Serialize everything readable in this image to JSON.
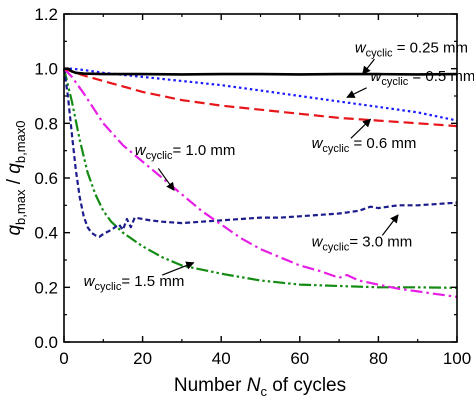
{
  "chart_data": {
    "type": "line",
    "xlabel": {
      "prefix": "Number ",
      "var": "N",
      "sub": "c",
      "suffix": " of cycles"
    },
    "ylabel": {
      "num_var": "q",
      "num_sub": "b,max",
      "sep": " / ",
      "den_var": "q",
      "den_sub": "b,max0"
    },
    "xlim": [
      0,
      100
    ],
    "ylim": [
      0,
      1.2
    ],
    "x_ticks": [
      0,
      20,
      40,
      60,
      80,
      100
    ],
    "y_ticks": [
      0.0,
      0.2,
      0.4,
      0.6,
      0.8,
      1.0,
      1.2
    ],
    "x_tick_labels": [
      "0",
      "20",
      "40",
      "60",
      "80",
      "100"
    ],
    "y_tick_labels": [
      "0.0",
      "0.2",
      "0.4",
      "0.6",
      "0.8",
      "1.0",
      "1.2"
    ],
    "grid": false,
    "series": [
      {
        "label": "w_cyclic = 0.25 mm",
        "color": "#000000",
        "dash": "solid",
        "points": [
          [
            0,
            1.0
          ],
          [
            1,
            1.0
          ],
          [
            2,
            0.99
          ],
          [
            3,
            0.985
          ],
          [
            5,
            0.982
          ],
          [
            10,
            0.98
          ],
          [
            20,
            0.98
          ],
          [
            30,
            0.979
          ],
          [
            40,
            0.98
          ],
          [
            50,
            0.98
          ],
          [
            60,
            0.979
          ],
          [
            70,
            0.98
          ],
          [
            80,
            0.98
          ],
          [
            90,
            0.979
          ],
          [
            100,
            0.98
          ]
        ]
      },
      {
        "label": "w_cyclic = 0.5 mm",
        "color": "#1a1aff",
        "dash": "dot",
        "points": [
          [
            0,
            1.0
          ],
          [
            2,
            1.0
          ],
          [
            5,
            0.995
          ],
          [
            10,
            0.985
          ],
          [
            20,
            0.97
          ],
          [
            30,
            0.955
          ],
          [
            40,
            0.94
          ],
          [
            50,
            0.92
          ],
          [
            60,
            0.9
          ],
          [
            70,
            0.88
          ],
          [
            80,
            0.86
          ],
          [
            90,
            0.84
          ],
          [
            100,
            0.81
          ]
        ]
      },
      {
        "label": "w_cyclic = 0.6 mm",
        "color": "#e8161b",
        "dash": "dash",
        "points": [
          [
            0,
            1.0
          ],
          [
            2,
            0.99
          ],
          [
            5,
            0.975
          ],
          [
            10,
            0.955
          ],
          [
            15,
            0.935
          ],
          [
            20,
            0.915
          ],
          [
            30,
            0.885
          ],
          [
            40,
            0.865
          ],
          [
            50,
            0.85
          ],
          [
            60,
            0.835
          ],
          [
            70,
            0.82
          ],
          [
            80,
            0.81
          ],
          [
            90,
            0.8
          ],
          [
            100,
            0.79
          ]
        ]
      },
      {
        "label": "w_cyclic = 1.0 mm",
        "color": "#e61ee6",
        "dash": "dashdot",
        "points": [
          [
            0,
            1.0
          ],
          [
            2,
            0.97
          ],
          [
            5,
            0.91
          ],
          [
            10,
            0.8
          ],
          [
            15,
            0.72
          ],
          [
            20,
            0.66
          ],
          [
            25,
            0.6
          ],
          [
            30,
            0.54
          ],
          [
            35,
            0.48
          ],
          [
            40,
            0.43
          ],
          [
            45,
            0.38
          ],
          [
            50,
            0.34
          ],
          [
            55,
            0.31
          ],
          [
            60,
            0.28
          ],
          [
            65,
            0.26
          ],
          [
            70,
            0.235
          ],
          [
            72,
            0.245
          ],
          [
            75,
            0.225
          ],
          [
            80,
            0.21
          ],
          [
            85,
            0.195
          ],
          [
            90,
            0.185
          ],
          [
            95,
            0.175
          ],
          [
            100,
            0.165
          ]
        ]
      },
      {
        "label": "w_cyclic = 1.5 mm",
        "color": "#148c14",
        "dash": "dashdotdot",
        "points": [
          [
            0,
            1.0
          ],
          [
            2,
            0.88
          ],
          [
            4,
            0.74
          ],
          [
            6,
            0.62
          ],
          [
            8,
            0.54
          ],
          [
            10,
            0.48
          ],
          [
            12,
            0.44
          ],
          [
            15,
            0.4
          ],
          [
            20,
            0.35
          ],
          [
            25,
            0.31
          ],
          [
            30,
            0.28
          ],
          [
            40,
            0.25
          ],
          [
            50,
            0.225
          ],
          [
            60,
            0.21
          ],
          [
            70,
            0.205
          ],
          [
            80,
            0.2
          ],
          [
            90,
            0.2
          ],
          [
            100,
            0.198
          ]
        ]
      },
      {
        "label": "w_cyclic = 3.0 mm",
        "color": "#1c1c8c",
        "dash": "shortdash",
        "points": [
          [
            0,
            1.0
          ],
          [
            1,
            0.9
          ],
          [
            2,
            0.76
          ],
          [
            3,
            0.63
          ],
          [
            4,
            0.53
          ],
          [
            5,
            0.46
          ],
          [
            6,
            0.42
          ],
          [
            7,
            0.4
          ],
          [
            8,
            0.39
          ],
          [
            9,
            0.385
          ],
          [
            10,
            0.395
          ],
          [
            12,
            0.41
          ],
          [
            14,
            0.43
          ],
          [
            15,
            0.41
          ],
          [
            16,
            0.45
          ],
          [
            17,
            0.42
          ],
          [
            18,
            0.455
          ],
          [
            20,
            0.45
          ],
          [
            22,
            0.445
          ],
          [
            25,
            0.44
          ],
          [
            30,
            0.435
          ],
          [
            35,
            0.44
          ],
          [
            40,
            0.445
          ],
          [
            45,
            0.45
          ],
          [
            50,
            0.455
          ],
          [
            55,
            0.455
          ],
          [
            60,
            0.46
          ],
          [
            65,
            0.465
          ],
          [
            70,
            0.47
          ],
          [
            75,
            0.48
          ],
          [
            78,
            0.495
          ],
          [
            80,
            0.49
          ],
          [
            85,
            0.5
          ],
          [
            90,
            0.5
          ],
          [
            95,
            0.505
          ],
          [
            100,
            0.51
          ]
        ]
      }
    ],
    "annotations": [
      {
        "var": "w",
        "sub": "cyclic",
        "text": " = 0.25 mm",
        "at": [
          74,
          1.06
        ],
        "arrow": [
          [
            79,
            1.035
          ],
          [
            76,
            0.98
          ]
        ]
      },
      {
        "var": "w",
        "sub": "cyclic",
        "text": " = 0.5 mm",
        "at": [
          78,
          0.955
        ],
        "arrow": [
          [
            77,
            0.93
          ],
          [
            72,
            0.895
          ]
        ]
      },
      {
        "var": "w",
        "sub": "cyclic",
        "text": " = 0.6 mm",
        "at": [
          63,
          0.71
        ],
        "arrow": [
          [
            73,
            0.745
          ],
          [
            78,
            0.815
          ]
        ]
      },
      {
        "var": "w",
        "sub": "cyclic",
        "text": "= 1.0 mm",
        "at": [
          18,
          0.685
        ],
        "arrow": [
          [
            24,
            0.635
          ],
          [
            28,
            0.555
          ]
        ]
      },
      {
        "var": "w",
        "sub": "cyclic",
        "text": "= 3.0 mm",
        "at": [
          63,
          0.35
        ],
        "arrow": [
          [
            81,
            0.39
          ],
          [
            85,
            0.465
          ]
        ]
      },
      {
        "var": "w",
        "sub": "cyclic",
        "text": "= 1.5 mm",
        "at": [
          5,
          0.205
        ],
        "arrow": [
          [
            25,
            0.245
          ],
          [
            33,
            0.29
          ]
        ]
      }
    ]
  }
}
